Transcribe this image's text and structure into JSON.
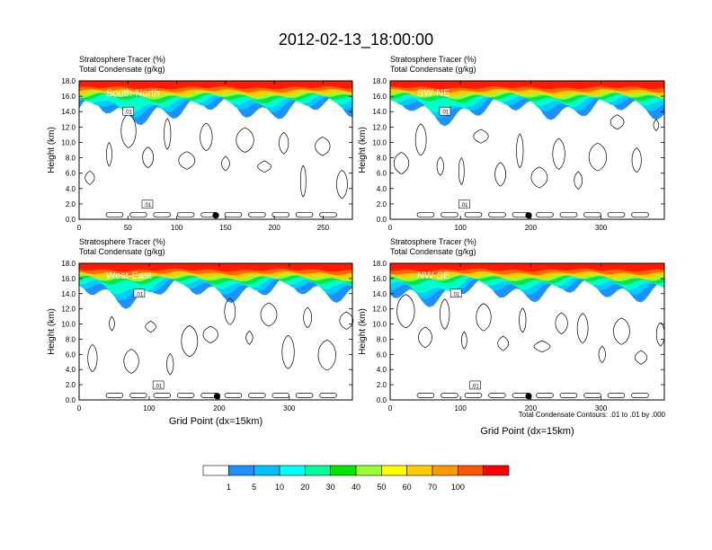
{
  "title": "2012-02-13_18:00:00",
  "header_line1": "Stratosphere Tracer   (%)",
  "header_line2": "Total Condensate   (g/kg)",
  "ylabel": "Height (km)",
  "xlabel": "Grid Point (dx=15km)",
  "contour_note": "Total Condensate Contours: .01 to .01 by .000",
  "contour_label": ".01",
  "colorbar": {
    "labels": [
      "1",
      "5",
      "10",
      "20",
      "30",
      "40",
      "50",
      "60",
      "70",
      "100"
    ],
    "colors": [
      "#ffffff",
      "#1e90ff",
      "#00bfff",
      "#00ffff",
      "#00ff99",
      "#00e600",
      "#99ff33",
      "#ffff00",
      "#ffcc00",
      "#ff9900",
      "#ff5500",
      "#ff0000"
    ]
  },
  "chart_data": [
    {
      "type": "heatmap",
      "panel": "South-North",
      "xlim": [
        0,
        280
      ],
      "ylim": [
        0,
        18
      ],
      "xticks": [
        0,
        50,
        100,
        150,
        200,
        250
      ],
      "yticks": [
        "0.0",
        "2.0",
        "4.0",
        "6.0",
        "8.0",
        "10.0",
        "12.0",
        "14.0",
        "16.0",
        "18.0"
      ],
      "marker_x": 140
    },
    {
      "type": "heatmap",
      "panel": "SW-NE",
      "xlim": [
        0,
        390
      ],
      "ylim": [
        0,
        18
      ],
      "xticks": [
        0,
        100,
        200,
        300
      ],
      "yticks": [
        "0.0",
        "2.0",
        "4.0",
        "6.0",
        "8.0",
        "10.0",
        "12.0",
        "14.0",
        "16.0",
        "18.0"
      ],
      "marker_x": 197
    },
    {
      "type": "heatmap",
      "panel": "West-East",
      "xlim": [
        0,
        390
      ],
      "ylim": [
        0,
        18
      ],
      "xticks": [
        0,
        100,
        200,
        300
      ],
      "yticks": [
        "0.0",
        "2.0",
        "4.0",
        "6.0",
        "8.0",
        "10.0",
        "12.0",
        "14.0",
        "16.0",
        "18.0"
      ],
      "marker_x": 197
    },
    {
      "type": "heatmap",
      "panel": "NW-SE",
      "xlim": [
        0,
        390
      ],
      "ylim": [
        0,
        18
      ],
      "xticks": [
        0,
        100,
        200,
        300
      ],
      "yticks": [
        "0.0",
        "2.0",
        "4.0",
        "6.0",
        "8.0",
        "10.0",
        "12.0",
        "14.0",
        "16.0",
        "18.0"
      ],
      "marker_x": 197
    }
  ]
}
